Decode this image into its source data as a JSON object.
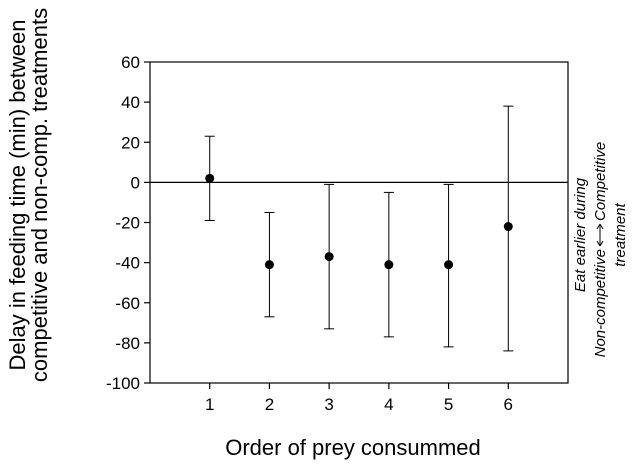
{
  "chart_data": {
    "type": "scatter",
    "x": [
      1,
      2,
      3,
      4,
      5,
      6
    ],
    "categories": [
      "1",
      "2",
      "3",
      "4",
      "5",
      "6"
    ],
    "values": [
      2,
      -41,
      -37,
      -41,
      -41,
      -22
    ],
    "error_low": [
      -19,
      -67,
      -73,
      -77,
      -82,
      -84
    ],
    "error_high": [
      23,
      -15,
      -1,
      -5,
      -1,
      38
    ],
    "ylim": [
      -100,
      60
    ],
    "xlim": [
      0,
      7
    ],
    "y_ticks": [
      -100,
      -80,
      -60,
      -40,
      -20,
      0,
      20,
      40,
      60
    ],
    "y_tick_labels": [
      "-100",
      "-80",
      "-60",
      "-40",
      "-20",
      "0",
      "20",
      "40",
      "60"
    ],
    "reference_line_y": 0,
    "xlabel": "Order of prey consummed",
    "ylabel_line1": "Delay in feeding time (min) between",
    "ylabel_line2": "competitive and non-comp. treatments",
    "right_annotation": {
      "line1": "Eat earlier during",
      "left_label": "Non-competitive",
      "right_label": "Competitive",
      "line3": "treatment"
    },
    "marker_color": "#000000",
    "grid": false,
    "legend": "none"
  }
}
